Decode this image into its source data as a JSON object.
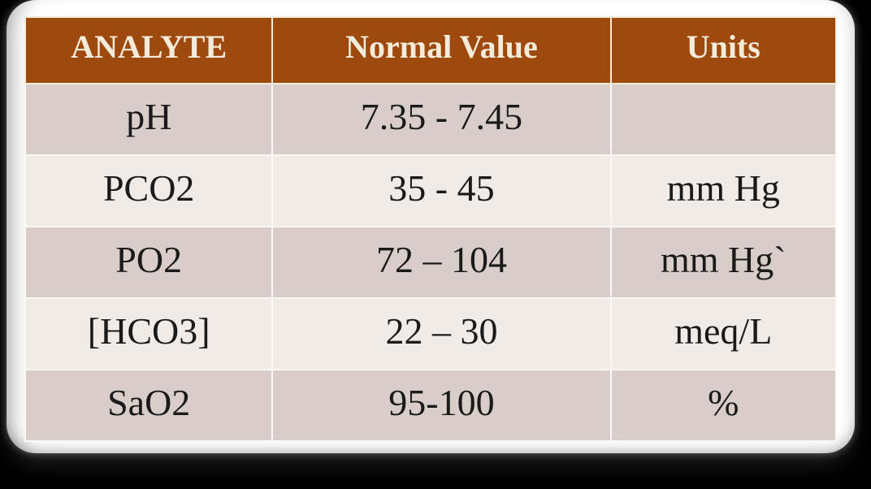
{
  "slide": {
    "background_color": "#000000",
    "card_color": "#FFFFFF"
  },
  "table": {
    "title_semantic": "arterial-blood-gas-normal-values",
    "columns": [
      {
        "label": "ANALYTE"
      },
      {
        "label": "Normal Value"
      },
      {
        "label": "Units"
      }
    ],
    "rows": [
      {
        "analyte": "pH",
        "normal_value": "7.35 - 7.45",
        "units": ""
      },
      {
        "analyte": "PCO2",
        "normal_value": "35 - 45",
        "units": "mm Hg"
      },
      {
        "analyte": "PO2",
        "normal_value": "72 – 104",
        "units": "mm Hg`"
      },
      {
        "analyte": "[HCO3]",
        "normal_value": "22 – 30",
        "units": "meq/L"
      },
      {
        "analyte": "SaO2",
        "normal_value": "95-100",
        "units": "%"
      }
    ],
    "colors": {
      "header_bg": "#9E490D",
      "header_text": "#F5EBDA",
      "row_dark": "#D8CDC9",
      "row_light": "#F0EBE7",
      "body_text": "#1A1A1A",
      "grid_line": "#F3ECDA"
    }
  }
}
